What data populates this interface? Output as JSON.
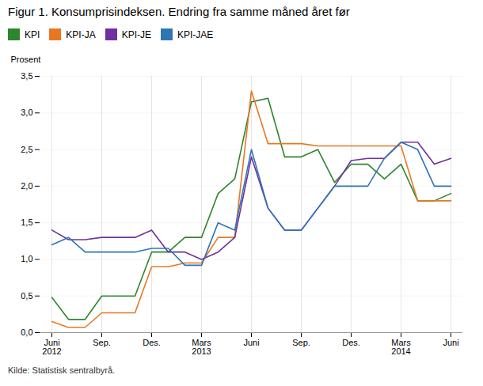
{
  "chart_data": {
    "type": "line",
    "title": "Figur 1. Konsumprisindeksen. Endring fra samme måned året før",
    "ylabel": "Prosent",
    "annotations": [
      "Kilde: Statistisk sentralbyrå."
    ],
    "categories": [
      "Juni\n2012",
      null,
      null,
      "Sep.",
      null,
      null,
      "Des.",
      null,
      null,
      "Mars\n2013",
      null,
      null,
      "Juni",
      null,
      null,
      "Sep.",
      null,
      null,
      "Des.",
      null,
      null,
      "Mars\n2014",
      null,
      null,
      "Juni"
    ],
    "series": [
      {
        "name": "KPI",
        "color": "#2d862d",
        "values": [
          0.48,
          0.18,
          0.18,
          0.5,
          0.5,
          0.5,
          1.1,
          1.1,
          1.3,
          1.3,
          1.9,
          2.1,
          3.15,
          3.2,
          2.4,
          2.4,
          2.5,
          2.05,
          2.3,
          2.3,
          2.1,
          2.3,
          1.8,
          1.8,
          1.9
        ]
      },
      {
        "name": "KPI-JA",
        "color": "#e87722",
        "values": [
          0.15,
          0.07,
          0.07,
          0.27,
          0.27,
          0.27,
          0.9,
          0.9,
          0.95,
          0.95,
          1.3,
          1.3,
          3.3,
          2.58,
          2.58,
          2.58,
          2.55,
          2.55,
          2.55,
          2.55,
          2.55,
          2.55,
          1.8,
          1.8,
          1.8
        ]
      },
      {
        "name": "KPI-JE",
        "color": "#7030a0",
        "values": [
          1.4,
          1.27,
          1.27,
          1.3,
          1.3,
          1.3,
          1.4,
          1.1,
          1.1,
          1.0,
          1.1,
          1.3,
          2.4,
          1.7,
          1.4,
          1.4,
          1.7,
          2.0,
          2.35,
          2.38,
          2.38,
          2.6,
          2.6,
          2.3,
          2.38
        ]
      },
      {
        "name": "KPI-JAE",
        "color": "#2e75b6",
        "values": [
          1.2,
          1.3,
          1.1,
          1.1,
          1.1,
          1.1,
          1.15,
          1.15,
          0.92,
          0.92,
          1.5,
          1.4,
          2.5,
          1.7,
          1.4,
          1.4,
          1.7,
          2.0,
          2.0,
          2.0,
          2.38,
          2.6,
          2.5,
          2.0,
          2.0
        ]
      }
    ],
    "ylim": [
      0.0,
      3.5
    ],
    "yticks": [
      {
        "value": 0.0,
        "label": "0,0"
      },
      {
        "value": 0.5,
        "label": "0,5"
      },
      {
        "value": 1.0,
        "label": "1,0"
      },
      {
        "value": 1.5,
        "label": "1,5"
      },
      {
        "value": 2.0,
        "label": "2,0"
      },
      {
        "value": 2.5,
        "label": "2,5"
      },
      {
        "value": 3.0,
        "label": "3,0"
      },
      {
        "value": 3.5,
        "label": "3,5"
      }
    ],
    "grid": true,
    "legend": "upper left"
  }
}
